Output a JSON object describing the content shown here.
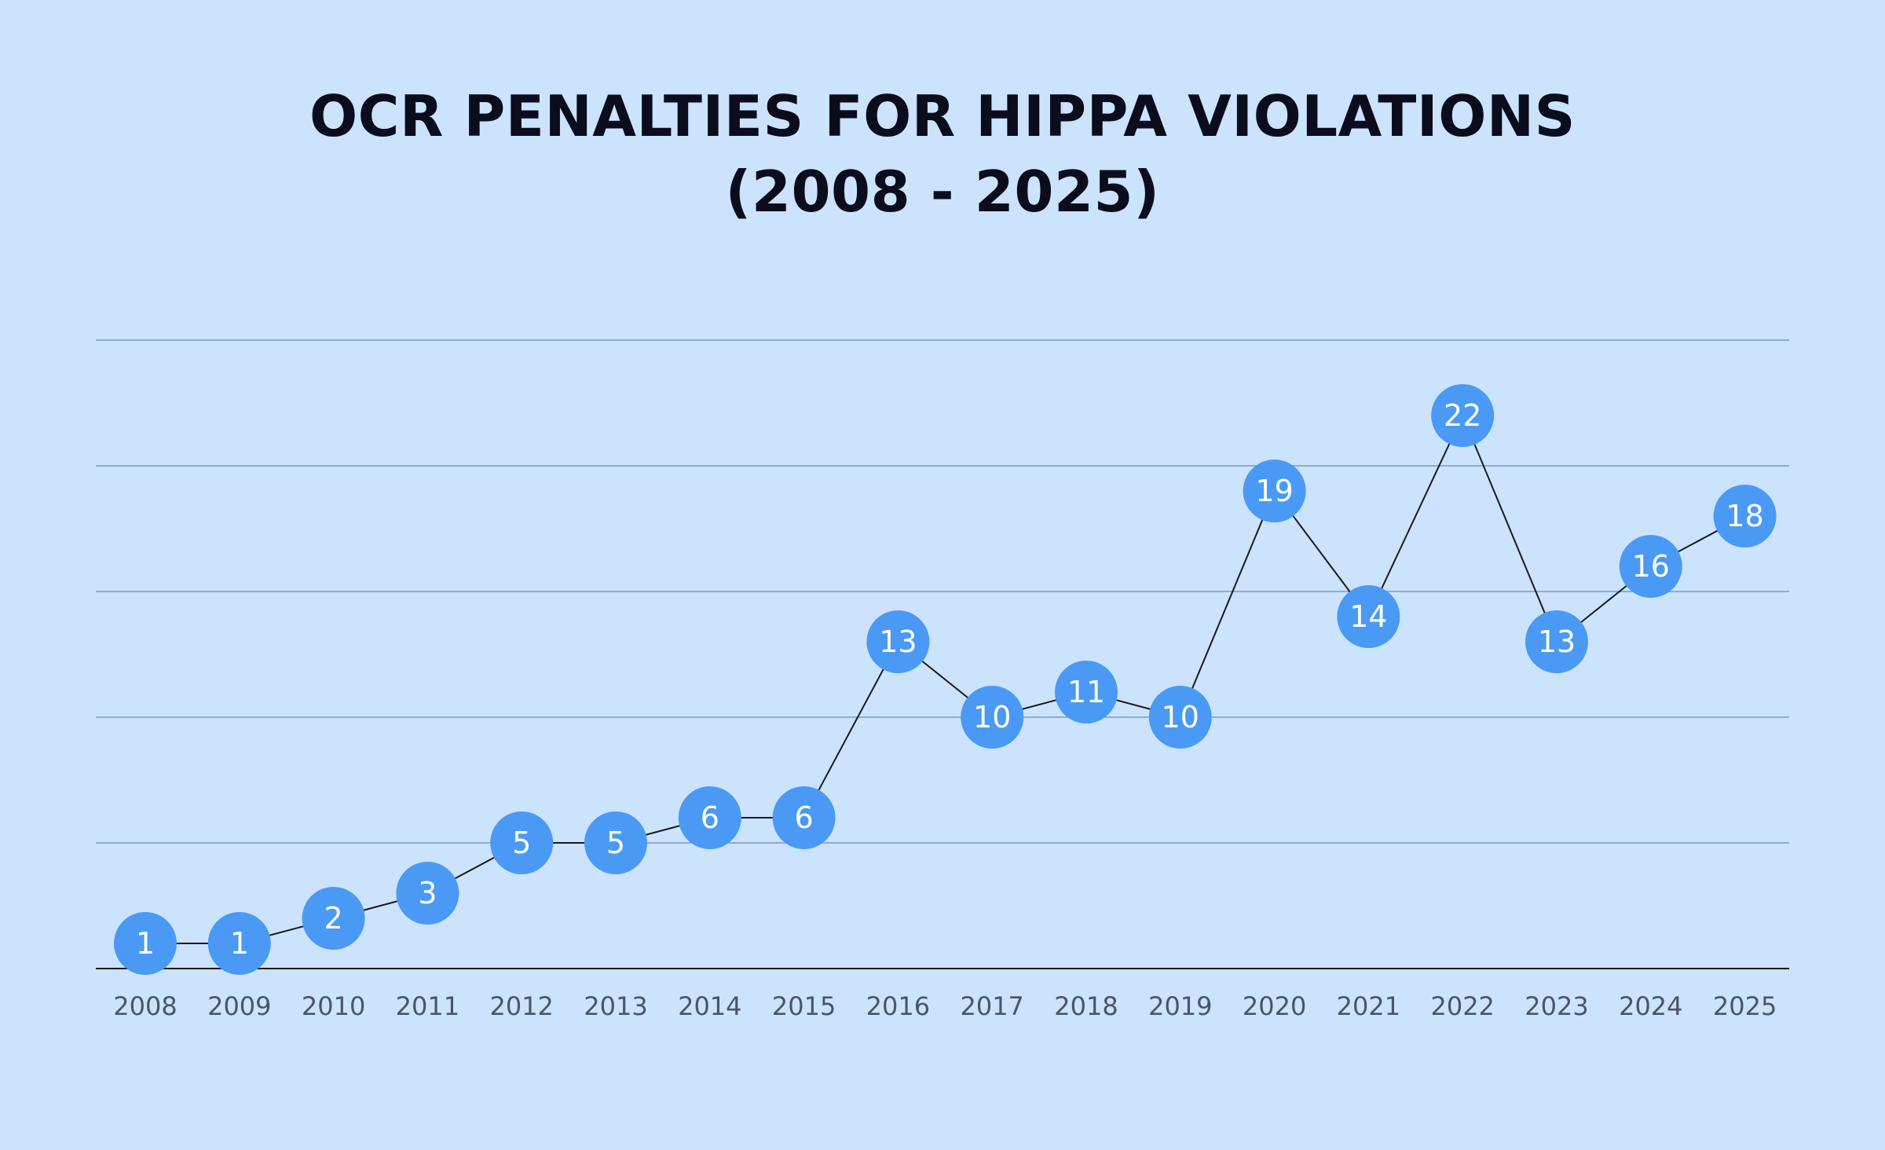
{
  "chart_data": {
    "type": "line",
    "title_line1": "OCR PENALTIES FOR HIPPA VIOLATIONS",
    "title_line2": "(2008 - 2025)",
    "xlabel": "",
    "ylabel": "",
    "categories": [
      "2008",
      "2009",
      "2010",
      "2011",
      "2012",
      "2013",
      "2014",
      "2015",
      "2016",
      "2017",
      "2018",
      "2019",
      "2020",
      "2021",
      "2022",
      "2023",
      "2024",
      "2025"
    ],
    "values": [
      1,
      1,
      2,
      3,
      5,
      5,
      6,
      6,
      13,
      10,
      11,
      10,
      19,
      14,
      22,
      13,
      16,
      18
    ],
    "ylim": [
      0,
      25
    ],
    "grid": true,
    "legend": "none",
    "colors": {
      "background": "#cce3fd",
      "point": "#4a9af5",
      "point_text": "#ffffff",
      "line": "#1a1a1a",
      "grid": "#7f9ab3",
      "axis": "#111111",
      "title": "#0b0d1c",
      "tick_text": "#4a5568"
    }
  }
}
